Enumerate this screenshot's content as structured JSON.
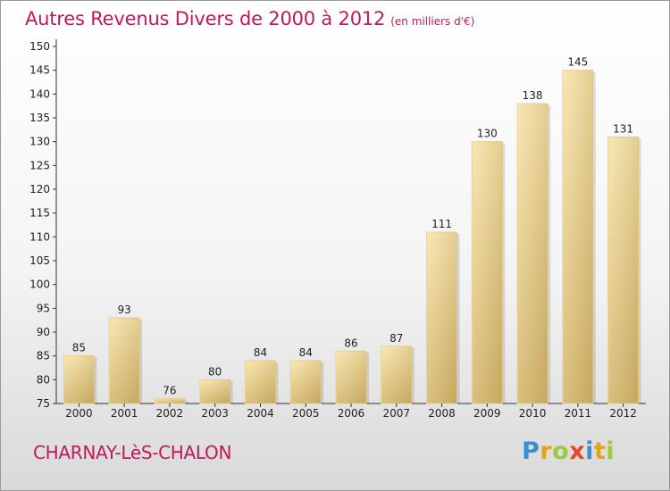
{
  "header": {
    "title": "Autres Revenus Divers de 2000 à 2012",
    "subtitle": "(en milliers d'€)"
  },
  "footer": {
    "commune": "CHARNAY-LèS-CHALON",
    "logo": "Proxiti"
  },
  "colors": {
    "title": "#c2185b",
    "bar_light": "#f7e3a8",
    "bar_dark": "#d2b468",
    "axis": "#333333"
  },
  "chart_data": {
    "type": "bar",
    "title": "Autres Revenus Divers de 2000 à 2012",
    "subtitle": "(en milliers d'€)",
    "categories": [
      "2000",
      "2001",
      "2002",
      "2003",
      "2004",
      "2005",
      "2006",
      "2007",
      "2008",
      "2009",
      "2010",
      "2011",
      "2012"
    ],
    "values": [
      85,
      93,
      76,
      80,
      84,
      84,
      86,
      87,
      111,
      130,
      138,
      145,
      131
    ],
    "ylim": [
      75,
      150
    ],
    "yticks": [
      75,
      80,
      85,
      90,
      95,
      100,
      105,
      110,
      115,
      120,
      125,
      130,
      135,
      140,
      145,
      150
    ],
    "grid": false,
    "legend": "none",
    "data_labels": true
  }
}
